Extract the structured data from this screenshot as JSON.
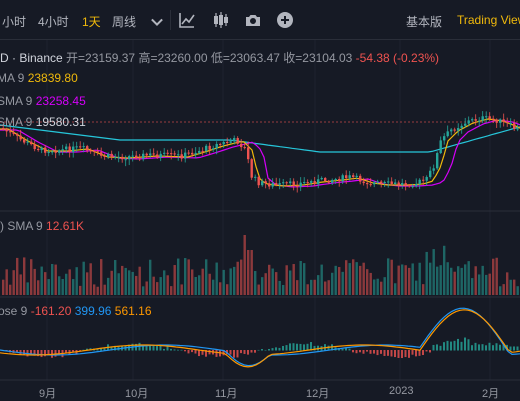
{
  "toolbar": {
    "intervals": [
      "小时",
      "4小时",
      "1天",
      "周线"
    ],
    "active_interval": "1天",
    "more_icon": "chevron-down-icon",
    "icons": [
      "indicators-icon",
      "candle-type-icon",
      "screenshot-icon",
      "add-icon"
    ],
    "basic_label": "基本版",
    "tv_label": "Trading View"
  },
  "symbol": {
    "pair": "D · Binance",
    "open_label": "开=23159.37",
    "high_label": "高=23260.00",
    "low_label": "低=23063.47",
    "close_label": "收=23104.03",
    "change": "-54.38 (-0.23%)"
  },
  "ma_legend": [
    {
      "label": "MA 9",
      "value": "23839.80",
      "color": "#f0b90b"
    },
    {
      "label": "SMA 9",
      "value": "23258.45",
      "color": "#d500f9"
    },
    {
      "label": "SMA 9",
      "value": "19580.31",
      "color": "#26c6da"
    }
  ],
  "volume_legend": {
    "label": ") SMA 9",
    "value": "12.61K",
    "color": "#ef5350"
  },
  "macd_legend": {
    "label": "ose 9",
    "v1": "-161.20",
    "v2": "399.96",
    "v3": "561.16",
    "c1": "#ef5350",
    "c2": "#2196f3",
    "c3": "#ff9800"
  },
  "x_axis": [
    "9月",
    "10月",
    "11月",
    "12月",
    "2023",
    "2月"
  ],
  "colors": {
    "up": "#26a69a",
    "down": "#ef5350",
    "background": "#161a25",
    "accent": "#f0b90b"
  }
}
